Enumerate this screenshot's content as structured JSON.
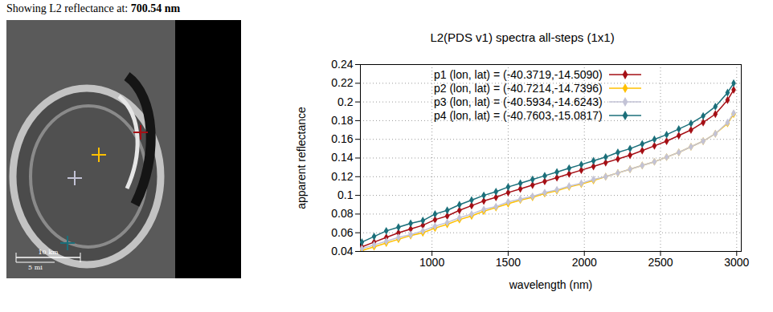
{
  "image": {
    "caption": "Showing L2 reflectance at:",
    "band": "700.54 nm",
    "scale_bar": [
      "10 km",
      "5 mi"
    ]
  },
  "chart_data": {
    "type": "line",
    "title": "L2(PDS v1) spectra all-steps (1x1)",
    "x_label": "wavelength (nm)",
    "y_label": "apparent reflectance",
    "xlim": [
      530,
      3030
    ],
    "xticks": [
      1000,
      1500,
      2000,
      2500,
      3000
    ],
    "ylim": [
      0.04,
      0.24
    ],
    "yticks": [
      0.04,
      0.06,
      0.08,
      0.1,
      0.12,
      0.14,
      0.16,
      0.18,
      0.2,
      0.22,
      0.24
    ],
    "grid": true,
    "legend": "top-right",
    "marker": "diamond",
    "x": [
      540,
      620,
      700,
      780,
      860,
      940,
      1020,
      1100,
      1180,
      1260,
      1340,
      1420,
      1500,
      1580,
      1660,
      1740,
      1820,
      1900,
      1980,
      2060,
      2140,
      2220,
      2300,
      2380,
      2460,
      2540,
      2620,
      2700,
      2780,
      2860,
      2940,
      2980
    ],
    "series": [
      {
        "name": "p1 (lon, lat) = (-40.3719,-14.5090)",
        "color": "#a50f15",
        "values": [
          0.045,
          0.05,
          0.055,
          0.06,
          0.064,
          0.068,
          0.074,
          0.078,
          0.084,
          0.089,
          0.094,
          0.098,
          0.103,
          0.107,
          0.111,
          0.115,
          0.119,
          0.123,
          0.127,
          0.131,
          0.135,
          0.139,
          0.143,
          0.148,
          0.153,
          0.158,
          0.164,
          0.17,
          0.178,
          0.187,
          0.202,
          0.213
        ]
      },
      {
        "name": "p2 (lon, lat) = (-40.7214,-14.7396)",
        "color": "#ffc000",
        "values": [
          0.041,
          0.045,
          0.049,
          0.053,
          0.057,
          0.06,
          0.065,
          0.069,
          0.074,
          0.078,
          0.083,
          0.087,
          0.091,
          0.095,
          0.098,
          0.102,
          0.105,
          0.109,
          0.112,
          0.116,
          0.12,
          0.124,
          0.128,
          0.132,
          0.136,
          0.141,
          0.146,
          0.152,
          0.158,
          0.166,
          0.177,
          0.187
        ]
      },
      {
        "name": "p3 (lon, lat) = (-40.5934,-14.6243)",
        "color": "#c3c3d6",
        "values": [
          0.043,
          0.047,
          0.051,
          0.055,
          0.058,
          0.062,
          0.067,
          0.071,
          0.076,
          0.08,
          0.085,
          0.088,
          0.093,
          0.096,
          0.099,
          0.103,
          0.106,
          0.11,
          0.113,
          0.117,
          0.12,
          0.124,
          0.128,
          0.132,
          0.136,
          0.141,
          0.146,
          0.152,
          0.158,
          0.166,
          0.178,
          0.188
        ]
      },
      {
        "name": "p4 (lon, lat) = (-40.7603,-15.0817)",
        "color": "#1b6f7a",
        "values": [
          0.05,
          0.056,
          0.062,
          0.066,
          0.07,
          0.073,
          0.08,
          0.084,
          0.09,
          0.095,
          0.1,
          0.104,
          0.109,
          0.113,
          0.117,
          0.121,
          0.125,
          0.129,
          0.133,
          0.137,
          0.141,
          0.146,
          0.15,
          0.155,
          0.16,
          0.165,
          0.171,
          0.177,
          0.185,
          0.195,
          0.21,
          0.22
        ]
      }
    ]
  }
}
